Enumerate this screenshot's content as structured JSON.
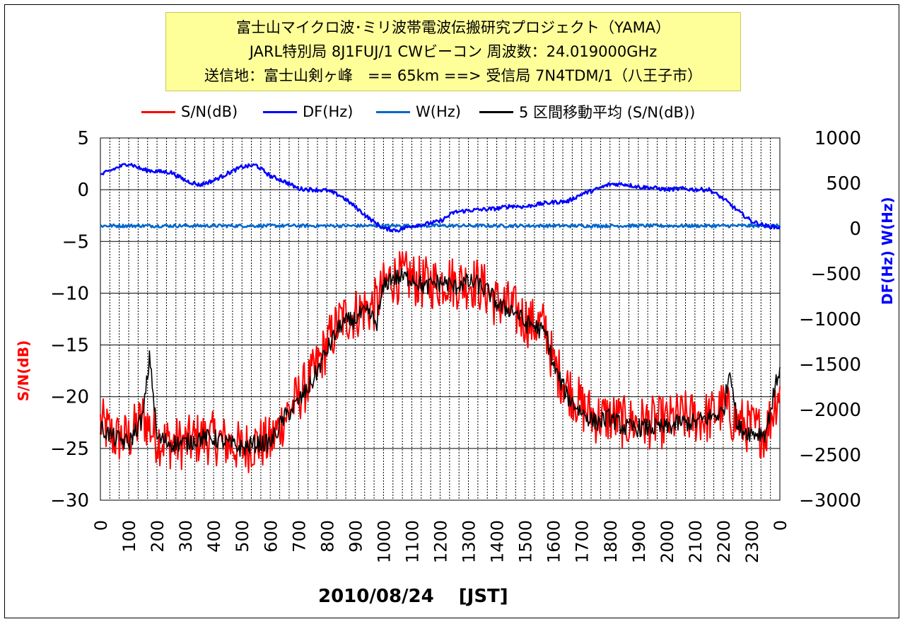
{
  "title_lines": [
    "富士山マイクロ波･ミリ波帯電波伝搬研究プロジェクト（YAMA）",
    "JARL特別局 8J1FUJ/1 CWビーコン 周波数：24.019000GHz",
    "送信地：富士山剣ヶ峰　== 65km ==> 受信局 7N4TDM/1（八王子市）"
  ],
  "legend": [
    {
      "label": "S/N(dB)",
      "color": "#ff0000"
    },
    {
      "label": "DF(Hz)",
      "color": "#0000ff"
    },
    {
      "label": "W(Hz)",
      "color": "#0066cc"
    },
    {
      "label": "5 区間移動平均 (S/N(dB))",
      "color": "#000000"
    }
  ],
  "axis_titles": {
    "left": "S/N(dB)",
    "right": "DF(Hz) W(Hz)",
    "bottom": "2010/08/24　 [JST]"
  },
  "colors": {
    "sn": "#ff0000",
    "df": "#0000ff",
    "w": "#0066cc",
    "ma": "#000000",
    "right_title": "#0000ff",
    "left_title": "#ff0000"
  },
  "chart_data": {
    "type": "line",
    "x_ticks": [
      "0",
      "100",
      "200",
      "300",
      "400",
      "500",
      "600",
      "700",
      "800",
      "900",
      "1000",
      "1100",
      "1200",
      "1300",
      "1400",
      "1500",
      "1600",
      "1700",
      "1800",
      "1900",
      "2000",
      "2100",
      "2200",
      "2300",
      "0"
    ],
    "x_range_hours": [
      0,
      24
    ],
    "y_left": {
      "label": "S/N(dB)",
      "range": [
        -30,
        5
      ],
      "ticks": [
        5,
        0,
        -5,
        -10,
        -15,
        -20,
        -25,
        -30
      ]
    },
    "y_right": {
      "label": "DF(Hz) W(Hz)",
      "range": [
        -3000,
        1000
      ],
      "ticks": [
        1000,
        500,
        0,
        -500,
        -1000,
        -1500,
        -2000,
        -2500,
        -3000
      ]
    },
    "series": [
      {
        "name": "S/N(dB)",
        "axis": "left",
        "x": [
          0,
          0.5,
          1,
          1.5,
          2,
          2.5,
          3,
          3.5,
          4,
          4.5,
          5,
          5.5,
          6,
          6.5,
          7,
          7.5,
          8,
          8.5,
          9,
          9.25,
          9.5,
          9.75,
          10,
          10.25,
          10.5,
          10.75,
          11,
          11.25,
          11.5,
          11.75,
          12,
          12.25,
          12.5,
          12.75,
          13,
          13.25,
          13.5,
          13.75,
          14,
          14.25,
          14.5,
          14.75,
          15,
          15.25,
          15.5,
          15.75,
          16,
          16.5,
          17,
          17.5,
          18,
          18.5,
          19,
          19.5,
          20,
          20.5,
          21,
          21.5,
          22,
          22.5,
          23,
          23.5,
          24
        ],
        "values": [
          -22.5,
          -24,
          -24,
          -22,
          -24,
          -24.5,
          -24.5,
          -24,
          -24,
          -24.5,
          -25,
          -24.5,
          -24.5,
          -22,
          -20,
          -18,
          -15,
          -12.5,
          -12,
          -11.5,
          -11.5,
          -11,
          -9.5,
          -8.5,
          -8.5,
          -8.5,
          -8.5,
          -9,
          -9,
          -9,
          -9,
          -8.5,
          -9,
          -9,
          -9,
          -9,
          -9.5,
          -10,
          -11,
          -11,
          -11.5,
          -12,
          -12.5,
          -13,
          -13,
          -13.5,
          -17,
          -19,
          -21,
          -22,
          -22,
          -22.5,
          -22.5,
          -22.5,
          -22.5,
          -22,
          -22,
          -22,
          -21,
          -22.5,
          -23,
          -23.5,
          -19
        ]
      },
      {
        "name": "DF(Hz)",
        "axis": "right",
        "x": [
          0,
          0.5,
          1,
          1.5,
          2,
          2.5,
          3,
          3.5,
          4,
          4.5,
          5,
          5.5,
          6,
          6.5,
          7,
          7.5,
          8,
          8.5,
          9,
          9.5,
          10,
          10.5,
          11,
          11.5,
          12,
          12.5,
          13,
          13.5,
          14,
          14.5,
          15,
          15.5,
          16,
          16.5,
          17,
          17.5,
          18,
          18.5,
          19,
          19.5,
          20,
          20.5,
          21,
          21.5,
          22,
          22.5,
          23,
          23.5,
          24
        ],
        "values": [
          590,
          660,
          720,
          650,
          630,
          620,
          530,
          480,
          530,
          610,
          680,
          700,
          580,
          520,
          440,
          430,
          420,
          360,
          240,
          110,
          0,
          -20,
          30,
          50,
          80,
          180,
          200,
          210,
          220,
          250,
          240,
          270,
          290,
          300,
          380,
          430,
          490,
          490,
          460,
          450,
          430,
          440,
          430,
          430,
          330,
          200,
          80,
          30,
          10
        ]
      },
      {
        "name": "W(Hz)",
        "axis": "right",
        "x": [
          0,
          2,
          4,
          6,
          8,
          10,
          12,
          14,
          16,
          18,
          20,
          22,
          24
        ],
        "values": [
          30,
          30,
          30,
          30,
          30,
          30,
          30,
          30,
          30,
          30,
          30,
          30,
          30
        ]
      },
      {
        "name": "5 区間移動平均 (S/N(dB))",
        "axis": "left",
        "x": [
          0,
          0.5,
          1,
          1.5,
          1.75,
          2,
          2.5,
          3,
          3.5,
          4,
          4.5,
          5,
          5.5,
          6,
          6.5,
          7,
          7.5,
          8,
          8.5,
          9,
          9.25,
          9.5,
          9.75,
          10,
          10.25,
          10.5,
          10.75,
          11,
          11.25,
          11.5,
          11.75,
          12,
          12.25,
          12.5,
          12.75,
          13,
          13.25,
          13.5,
          13.75,
          14,
          14.25,
          14.5,
          14.75,
          15,
          15.25,
          15.5,
          15.75,
          16,
          16.5,
          17,
          17.5,
          18,
          18.5,
          19,
          19.5,
          20,
          20.5,
          21,
          21.5,
          22,
          22.25,
          22.5,
          23,
          23.5,
          24
        ],
        "values": [
          -23,
          -24,
          -24.5,
          -22,
          -16,
          -24,
          -24.5,
          -24.5,
          -24,
          -24,
          -24.5,
          -25,
          -24.5,
          -24.5,
          -22,
          -20.5,
          -18.5,
          -15.5,
          -13,
          -12.5,
          -12,
          -12,
          -13,
          -9.5,
          -8.5,
          -8.5,
          -8.5,
          -8.5,
          -9,
          -9.5,
          -9,
          -9,
          -9,
          -9.5,
          -9,
          -9,
          -9,
          -9.5,
          -10,
          -11,
          -11.5,
          -11.5,
          -12,
          -13,
          -13,
          -13.5,
          -14,
          -17,
          -20,
          -21.5,
          -22.5,
          -22,
          -23,
          -23,
          -23,
          -23,
          -22.5,
          -22.5,
          -22,
          -21.5,
          -17,
          -23,
          -23.5,
          -23.5,
          -17
        ]
      }
    ],
    "grid": "on",
    "legend_position": "top"
  }
}
